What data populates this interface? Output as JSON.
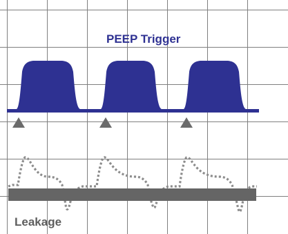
{
  "labels": {
    "trigger_title": "PEEP Trigger",
    "leakage_label": "Leakage"
  },
  "trigger_markers": [
    "triangle",
    "triangle",
    "triangle"
  ],
  "colors": {
    "grid": "#7f7f7f",
    "pressure_wave": "#2e3192",
    "trigger_marker": "#6b6b6b",
    "leakage_band": "#656565",
    "flow_curve": "#8c8c8c",
    "title_text": "#2e3192",
    "leakage_text": "#5e5e5e"
  },
  "icons": {
    "trigger_marker": "up-triangle-icon"
  }
}
